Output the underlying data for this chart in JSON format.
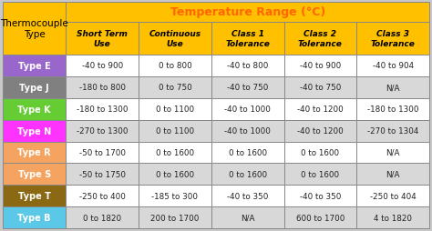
{
  "title": "Temperature Range (°C)",
  "col_headers": [
    "Thermocouple\nType",
    "Short Term\nUse",
    "Continuous\nUse",
    "Class 1\nTolerance",
    "Class 2\nTolerance",
    "Class 3\nTolerance"
  ],
  "rows": [
    [
      "Type E",
      "-40 to 900",
      "0 to 800",
      "-40 to 800",
      "-40 to 900",
      "-40 to 904"
    ],
    [
      "Type J",
      "-180 to 800",
      "0 to 750",
      "-40 to 750",
      "-40 to 750",
      "N/A"
    ],
    [
      "Type K",
      "-180 to 1300",
      "0 to 1100",
      "-40 to 1000",
      "-40 to 1200",
      "-180 to 1300"
    ],
    [
      "Type N",
      "-270 to 1300",
      "0 to 1100",
      "-40 to 1000",
      "-40 to 1200",
      "-270 to 1304"
    ],
    [
      "Type R",
      "-50 to 1700",
      "0 to 1600",
      "0 to 1600",
      "0 to 1600",
      "N/A"
    ],
    [
      "Type S",
      "-50 to 1750",
      "0 to 1600",
      "0 to 1600",
      "0 to 1600",
      "N/A"
    ],
    [
      "Type T",
      "-250 to 400",
      "-185 to 300",
      "-40 to 350",
      "-40 to 350",
      "-250 to 404"
    ],
    [
      "Type B",
      "0 to 1820",
      "200 to 1700",
      "N/A",
      "600 to 1700",
      "4 to 1820"
    ]
  ],
  "row_colors": [
    "#9966cc",
    "#808080",
    "#66cc33",
    "#ff33ff",
    "#f4a460",
    "#f4a460",
    "#8b6914",
    "#5bc8e8"
  ],
  "header_bg": "#ffc000",
  "title_bg": "#ffc000",
  "outer_bg": "#c8c8c8",
  "data_bg_odd": "#ffffff",
  "data_bg_even": "#d8d8d8",
  "border_color": "#888888",
  "title_color": "#ff6600",
  "header_text_color": "#000000",
  "row_label_text_color": "#ffffff",
  "data_text_color": "#222222",
  "figw": 4.74,
  "figh": 2.55,
  "dpi": 100
}
